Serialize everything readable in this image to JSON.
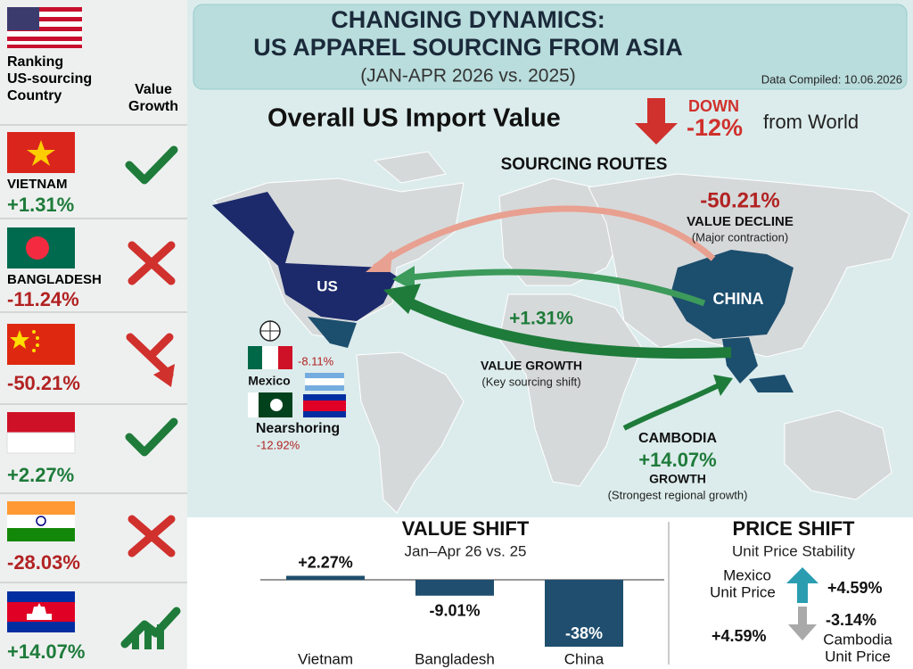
{
  "header": {
    "title_line1": "CHANGING DYNAMICS:",
    "title_line2": "US APPAREL SOURCING FROM ASIA",
    "subtitle": "(JAN-APR 2026 vs. 2025)",
    "compiled": "Data Compiled: 10.06.2026"
  },
  "sidebar": {
    "heading_rank": [
      "Ranking",
      "US-sourcing",
      "Country"
    ],
    "heading_growth": [
      "Value",
      "Growth"
    ],
    "rows": [
      {
        "name": "VIETNAM",
        "change": "+1.31%"
      },
      {
        "name": "BANGLADESH",
        "change": "-11.24%"
      },
      {
        "change": "-50.21%"
      },
      {
        "change": "+2.27%"
      },
      {
        "change": "-28.03%"
      },
      {
        "change": "+14.07%"
      }
    ]
  },
  "overall": {
    "label": "Overall US Import Value",
    "direction": "DOWN",
    "change": "-12%",
    "suffix": "from World"
  },
  "map": {
    "title": "SOURCING ROUTES",
    "us": "US",
    "china": "CHINA",
    "china_change": "-50.21%",
    "decline": "VALUE DECLINE",
    "decline_note": "(Major contraction)",
    "growth_change": "+1.31%",
    "growth": "VALUE GROWTH",
    "growth_note": "(Key sourcing shift)",
    "cambodia": "CAMBODIA",
    "cambodia_change": "+14.07%",
    "cambodia_growth": "GROWTH",
    "cambodia_note": "(Strongest regional growth)",
    "mexico": "Mexico",
    "mexico_change": "-8.11%",
    "nearshoring": "Nearshoring",
    "nearshoring_change": "-12.92%"
  },
  "chart_data": {
    "type": "bar",
    "title": "VALUE SHIFT",
    "subtitle": "Jan–Apr 26 vs. 25",
    "categories": [
      "Vietnam",
      "Bangladesh",
      "China"
    ],
    "values": [
      2.27,
      -9.01,
      -38
    ],
    "value_labels": [
      "+2.27%",
      "-9.01%",
      "-38%"
    ],
    "color": "#1f4e6e"
  },
  "price": {
    "title": "PRICE SHIFT",
    "subtitle": "Unit Price Stability",
    "mexico_label": [
      "Mexico",
      "Unit Price"
    ],
    "mexico_change": "+4.59%",
    "cambodia_label": [
      "Cambodia",
      "Unit Price"
    ],
    "cambodia_change": "-3.14%",
    "other_change": "+4.59%"
  }
}
